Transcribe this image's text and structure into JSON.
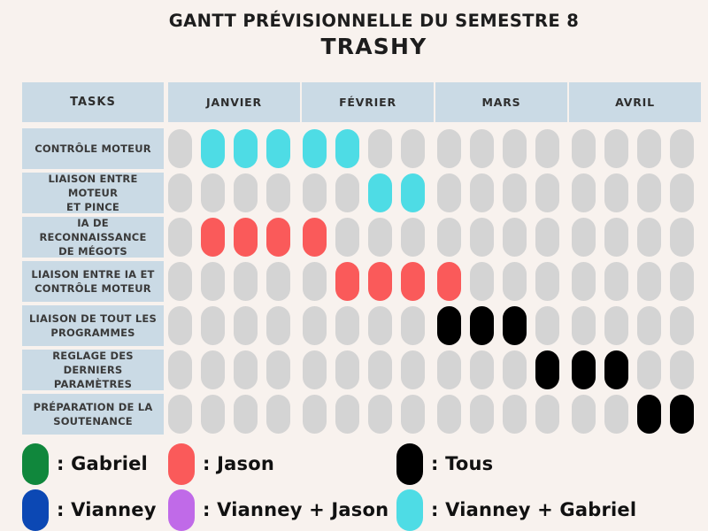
{
  "title": {
    "line1": "GANTT PRÉVISIONNELLE DU SEMESTRE 8",
    "line2": "TRASHY"
  },
  "table": {
    "tasks_header": "TASKS",
    "months": [
      "JANVIER",
      "FÉVRIER",
      "MARS",
      "AVRIL"
    ],
    "weeks_per_month": 4,
    "tasks": [
      {
        "label": "CONTRÔLE MOTEUR",
        "weeks": [
          "none",
          "vianney_gabriel",
          "vianney_gabriel",
          "vianney_gabriel",
          "vianney_gabriel",
          "vianney_gabriel",
          "none",
          "none",
          "none",
          "none",
          "none",
          "none",
          "none",
          "none",
          "none",
          "none"
        ]
      },
      {
        "label": "LIAISON ENTRE MOTEUR\nET PINCE",
        "weeks": [
          "none",
          "none",
          "none",
          "none",
          "none",
          "none",
          "vianney_gabriel",
          "vianney_gabriel",
          "none",
          "none",
          "none",
          "none",
          "none",
          "none",
          "none",
          "none"
        ]
      },
      {
        "label": "IA DE RECONNAISSANCE\nDE MÉGOTS",
        "weeks": [
          "none",
          "jason",
          "jason",
          "jason",
          "jason",
          "none",
          "none",
          "none",
          "none",
          "none",
          "none",
          "none",
          "none",
          "none",
          "none",
          "none"
        ]
      },
      {
        "label": "LIAISON ENTRE IA ET\nCONTRÔLE MOTEUR",
        "weeks": [
          "none",
          "none",
          "none",
          "none",
          "none",
          "jason",
          "jason",
          "jason",
          "jason",
          "none",
          "none",
          "none",
          "none",
          "none",
          "none",
          "none"
        ]
      },
      {
        "label": "LIAISON DE TOUT LES\nPROGRAMMES",
        "weeks": [
          "none",
          "none",
          "none",
          "none",
          "none",
          "none",
          "none",
          "none",
          "tous",
          "tous",
          "tous",
          "none",
          "none",
          "none",
          "none",
          "none"
        ]
      },
      {
        "label": "REGLAGE DES DERNIERS\nPARAMÈTRES",
        "weeks": [
          "none",
          "none",
          "none",
          "none",
          "none",
          "none",
          "none",
          "none",
          "none",
          "none",
          "none",
          "tous",
          "tous",
          "tous",
          "none",
          "none"
        ]
      },
      {
        "label": "PRÉPARATION DE LA\nSOUTENANCE",
        "weeks": [
          "none",
          "none",
          "none",
          "none",
          "none",
          "none",
          "none",
          "none",
          "none",
          "none",
          "none",
          "none",
          "none",
          "none",
          "tous",
          "tous"
        ]
      }
    ]
  },
  "legend": [
    {
      "label": ": Gabriel",
      "color_key": "gabriel"
    },
    {
      "label": ": Jason",
      "color_key": "jason"
    },
    {
      "label": ": Tous",
      "color_key": "tous"
    },
    {
      "label": ": Vianney",
      "color_key": "vianney"
    },
    {
      "label": ": Vianney + Jason",
      "color_key": "vianney_jason"
    },
    {
      "label": ": Vianney + Gabriel",
      "color_key": "vianney_gabriel"
    }
  ],
  "colors": {
    "none": "#d4d4d4",
    "gabriel": "#10873c",
    "jason": "#fa5a5a",
    "tous": "#000000",
    "vianney": "#0c48b4",
    "vianney_jason": "#c06ae8",
    "vianney_gabriel": "#4edce5",
    "header_box": "#cadae5",
    "background": "#f8f2ee"
  },
  "chart_data": {
    "type": "table",
    "title": "GANTT PRÉVISIONNELLE DU SEMESTRE 8 — TRASHY",
    "x_axis": {
      "label": "",
      "months": [
        "JANVIER",
        "FÉVRIER",
        "MARS",
        "AVRIL"
      ],
      "weeks_per_month": 4,
      "weeks_total": 16
    },
    "legend_position": "bottom",
    "rows": [
      {
        "task": "CONTRÔLE MOTEUR",
        "assignee": "Vianney + Gabriel",
        "weeks": [
          2,
          3,
          4,
          5,
          6
        ]
      },
      {
        "task": "LIAISON ENTRE MOTEUR ET PINCE",
        "assignee": "Vianney + Gabriel",
        "weeks": [
          7,
          8
        ]
      },
      {
        "task": "IA DE RECONNAISSANCE DE MÉGOTS",
        "assignee": "Jason",
        "weeks": [
          2,
          3,
          4,
          5
        ]
      },
      {
        "task": "LIAISON ENTRE IA ET CONTRÔLE MOTEUR",
        "assignee": "Jason",
        "weeks": [
          6,
          7,
          8,
          9
        ]
      },
      {
        "task": "LIAISON DE TOUT LES PROGRAMMES",
        "assignee": "Tous",
        "weeks": [
          9,
          10,
          11
        ]
      },
      {
        "task": "REGLAGE DES DERNIERS PARAMÈTRES",
        "assignee": "Tous",
        "weeks": [
          12,
          13,
          14
        ]
      },
      {
        "task": "PRÉPARATION DE LA SOUTENANCE",
        "assignee": "Tous",
        "weeks": [
          15,
          16
        ]
      }
    ]
  }
}
